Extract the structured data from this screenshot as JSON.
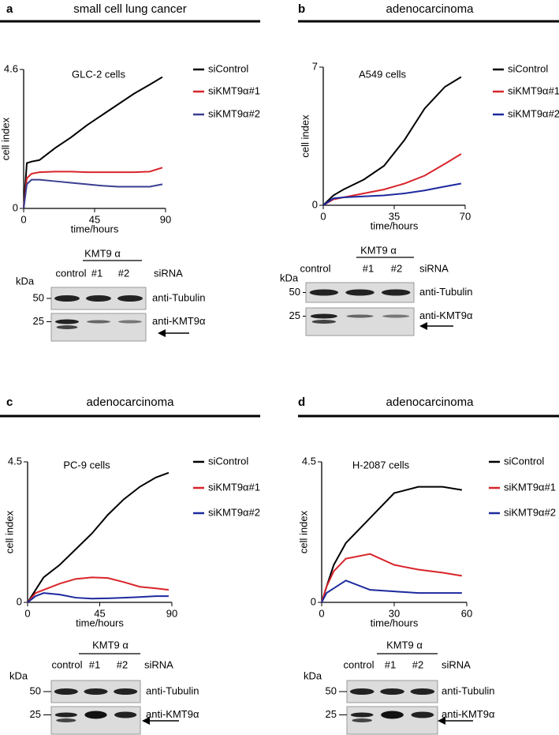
{
  "panels": [
    {
      "letter": "a",
      "heading": "small cell lung cancer",
      "blot": {
        "group_label": "KMT9 α",
        "lanes": [
          "control",
          "#1",
          "#2"
        ],
        "lane_group_label": "siRNA",
        "unit": "kDa",
        "markers": [
          "50",
          "25"
        ],
        "antibodies": [
          "anti-Tubulin",
          "anti-KMT9α"
        ]
      }
    },
    {
      "letter": "b",
      "heading": "adenocarcinoma",
      "blot": {
        "group_label": "KMT9 α",
        "lanes": [
          "control",
          "#1",
          "#2"
        ],
        "lane_group_label": "siRNA",
        "unit": "kDa",
        "markers": [
          "50",
          "25"
        ],
        "antibodies": [
          "anti-Tubulin",
          "anti-KMT9α"
        ]
      }
    },
    {
      "letter": "c",
      "heading": "adenocarcinoma",
      "blot": {
        "group_label": "KMT9 α",
        "lanes": [
          "control",
          "#1",
          "#2"
        ],
        "lane_group_label": "siRNA",
        "unit": "kDa",
        "markers": [
          "50",
          "25"
        ],
        "antibodies": [
          "anti-Tubulin",
          "anti-KMT9α"
        ]
      }
    },
    {
      "letter": "d",
      "heading": "adenocarcinoma",
      "blot": {
        "group_label": "KMT9 α",
        "lanes": [
          "control",
          "#1",
          "#2"
        ],
        "lane_group_label": "siRNA",
        "unit": "kDa",
        "markers": [
          "50",
          "25"
        ],
        "antibodies": [
          "anti-Tubulin",
          "anti-KMT9α"
        ]
      }
    }
  ],
  "chart_data": [
    {
      "type": "line",
      "title": "GLC-2 cells",
      "xlabel": "time/hours",
      "ylabel": "cell index",
      "xlim": [
        0,
        90
      ],
      "ylim": [
        0,
        4.6
      ],
      "xticks": [
        0,
        45,
        90
      ],
      "yticks": [
        0,
        4.6
      ],
      "x": [
        0,
        2,
        5,
        10,
        20,
        30,
        40,
        50,
        60,
        70,
        80,
        88
      ],
      "series": [
        {
          "name": "siControl",
          "color": "#000000",
          "values": [
            0,
            1.5,
            1.55,
            1.6,
            2.0,
            2.35,
            2.75,
            3.1,
            3.45,
            3.8,
            4.1,
            4.35
          ]
        },
        {
          "name": "siKMT9α#1",
          "color": "#d9242b",
          "values": [
            0,
            1.0,
            1.15,
            1.2,
            1.22,
            1.22,
            1.2,
            1.2,
            1.2,
            1.2,
            1.22,
            1.35
          ]
        },
        {
          "name": "siKMT9α#2",
          "color": "#3b3e8f",
          "values": [
            0,
            0.8,
            0.95,
            0.95,
            0.9,
            0.85,
            0.8,
            0.75,
            0.72,
            0.72,
            0.72,
            0.8
          ]
        }
      ]
    },
    {
      "type": "line",
      "title": "A549 cells",
      "xlabel": "time/hours",
      "ylabel": "cell index",
      "xlim": [
        0,
        70
      ],
      "ylim": [
        0,
        7
      ],
      "xticks": [
        0,
        35,
        70
      ],
      "yticks": [
        0,
        7
      ],
      "x": [
        0,
        5,
        10,
        20,
        30,
        40,
        50,
        60,
        68
      ],
      "series": [
        {
          "name": "siControl",
          "color": "#000000",
          "values": [
            0,
            0.5,
            0.8,
            1.3,
            2.0,
            3.3,
            4.9,
            6.0,
            6.5
          ]
        },
        {
          "name": "siKMT9α#1",
          "color": "#d9242b",
          "values": [
            0,
            0.3,
            0.4,
            0.6,
            0.8,
            1.1,
            1.5,
            2.1,
            2.6
          ]
        },
        {
          "name": "siKMT9α#2",
          "color": "#1c2a9e",
          "values": [
            0,
            0.35,
            0.4,
            0.45,
            0.5,
            0.6,
            0.75,
            0.95,
            1.1
          ]
        }
      ]
    },
    {
      "type": "line",
      "title": "PC-9 cells",
      "xlabel": "time/hours",
      "ylabel": "cell index",
      "xlim": [
        0,
        90
      ],
      "ylim": [
        0,
        4.5
      ],
      "xticks": [
        0,
        45,
        90
      ],
      "yticks": [
        0,
        4.5
      ],
      "x": [
        0,
        5,
        10,
        20,
        30,
        40,
        50,
        60,
        70,
        80,
        88
      ],
      "series": [
        {
          "name": "siControl",
          "color": "#000000",
          "values": [
            0,
            0.4,
            0.8,
            1.2,
            1.7,
            2.2,
            2.8,
            3.3,
            3.7,
            4.0,
            4.15
          ]
        },
        {
          "name": "siKMT9α#1",
          "color": "#d9242b",
          "values": [
            0,
            0.3,
            0.4,
            0.6,
            0.75,
            0.8,
            0.78,
            0.65,
            0.5,
            0.45,
            0.4
          ]
        },
        {
          "name": "siKMT9α#2",
          "color": "#1c2a9e",
          "values": [
            0,
            0.2,
            0.3,
            0.25,
            0.15,
            0.12,
            0.13,
            0.15,
            0.17,
            0.2,
            0.2
          ]
        }
      ]
    },
    {
      "type": "line",
      "title": "H-2087 cells",
      "xlabel": "time/hours",
      "ylabel": "cell index",
      "xlim": [
        0,
        60
      ],
      "ylim": [
        0,
        4.5
      ],
      "xticks": [
        0,
        30,
        60
      ],
      "yticks": [
        0,
        4.5
      ],
      "x": [
        0,
        2,
        5,
        10,
        20,
        30,
        40,
        50,
        58
      ],
      "series": [
        {
          "name": "siControl",
          "color": "#000000",
          "values": [
            0,
            0.5,
            1.2,
            1.9,
            2.7,
            3.5,
            3.7,
            3.7,
            3.6
          ]
        },
        {
          "name": "siKMT9α#1",
          "color": "#d9242b",
          "values": [
            0,
            0.5,
            1.0,
            1.4,
            1.55,
            1.2,
            1.05,
            0.95,
            0.85
          ]
        },
        {
          "name": "siKMT9α#2",
          "color": "#1c2a9e",
          "values": [
            0,
            0.3,
            0.45,
            0.7,
            0.4,
            0.35,
            0.3,
            0.3,
            0.3
          ]
        }
      ]
    }
  ]
}
